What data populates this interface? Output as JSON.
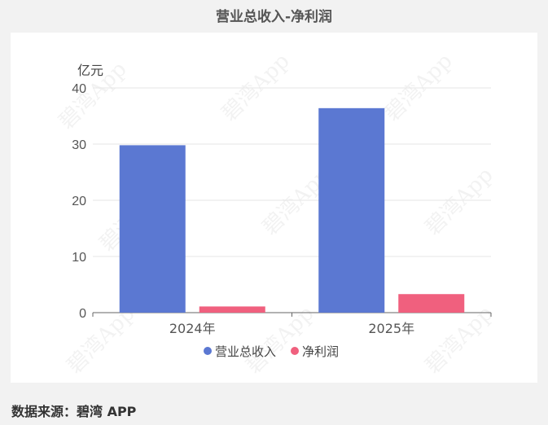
{
  "title": "营业总收入-净利润",
  "source": "数据来源：碧湾 APP",
  "watermark": "碧湾App",
  "chart_data": {
    "type": "bar",
    "categories": [
      "2024年",
      "2025年"
    ],
    "series": [
      {
        "name": "营业总收入",
        "values": [
          29.8,
          36.4
        ],
        "color": "#5b78d2"
      },
      {
        "name": "净利润",
        "values": [
          1.1,
          3.3
        ],
        "color": "#f0607e"
      }
    ],
    "ylabel": "亿元",
    "ylim": [
      0,
      40
    ],
    "yticks": [
      0,
      10,
      20,
      30,
      40
    ],
    "grid": true,
    "legend": "bottom"
  }
}
